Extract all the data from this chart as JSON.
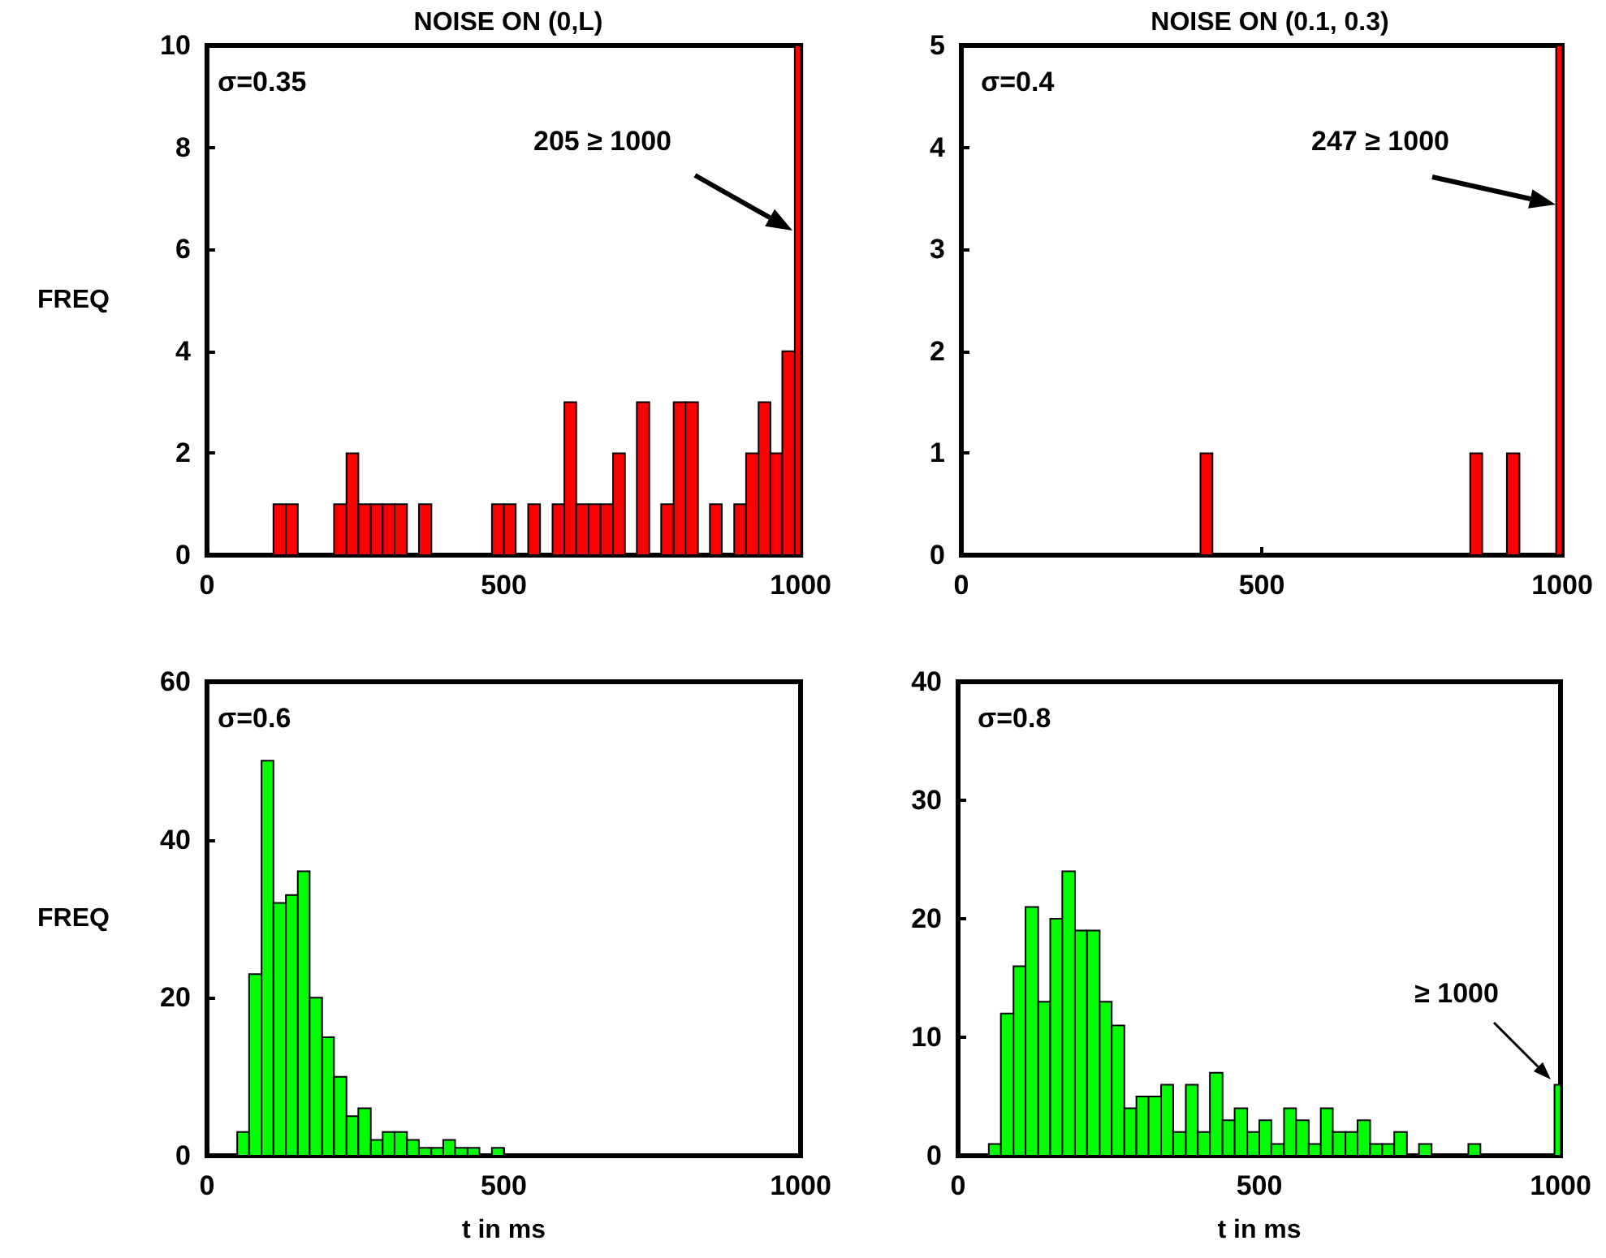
{
  "chart_data": [
    {
      "type": "histogram",
      "title": "NOISE ON (0,L)",
      "ylabel": "FREQ",
      "color": "#ff0000",
      "grid": false,
      "xlim": [
        0,
        1000
      ],
      "xticks": [
        0,
        500,
        1000
      ],
      "ylim": [
        0,
        10
      ],
      "yticks": [
        0,
        2,
        4,
        6,
        8,
        10
      ],
      "bins": [
        112,
        133,
        153,
        214,
        235,
        255,
        276,
        296,
        316,
        337,
        357,
        378,
        480,
        500,
        520,
        541,
        561,
        582,
        602,
        622,
        643,
        663,
        684,
        704,
        724,
        745,
        765,
        786,
        806,
        827,
        847,
        867,
        888,
        908,
        929,
        949,
        969,
        990,
        1000
      ],
      "values": [
        1,
        1,
        0,
        1,
        2,
        1,
        1,
        1,
        1,
        0,
        1,
        0,
        1,
        1,
        0,
        1,
        0,
        1,
        3,
        1,
        1,
        1,
        2,
        0,
        3,
        0,
        1,
        3,
        3,
        0,
        1,
        0,
        1,
        2,
        3,
        2,
        4,
        10
      ],
      "annotations": [
        "σ=0.35",
        "205 ≥ 1000"
      ]
    },
    {
      "type": "histogram",
      "title": "NOISE ON (0.1, 0.3)",
      "color": "#ff0000",
      "grid": false,
      "xlim": [
        0,
        1000
      ],
      "xticks": [
        0,
        500,
        1000
      ],
      "ylim": [
        0,
        5
      ],
      "yticks": [
        0,
        1,
        2,
        3,
        4,
        5
      ],
      "bins": [
        398,
        418,
        847,
        867,
        908,
        929,
        990,
        1000
      ],
      "values": [
        1,
        0,
        1,
        0,
        1,
        0,
        5
      ],
      "annotations": [
        "σ=0.4",
        "247 ≥ 1000"
      ]
    },
    {
      "type": "histogram",
      "ylabel": "FREQ",
      "xlabel": "t in ms",
      "color": "#00ff00",
      "grid": false,
      "xlim": [
        0,
        1000
      ],
      "xticks": [
        0,
        500,
        1000
      ],
      "ylim": [
        0,
        60
      ],
      "yticks": [
        0,
        20,
        40,
        60
      ],
      "bins": [
        51,
        71,
        92,
        112,
        133,
        153,
        173,
        194,
        214,
        235,
        255,
        276,
        296,
        316,
        337,
        357,
        378,
        398,
        418,
        439,
        459,
        480,
        500
      ],
      "values": [
        3,
        23,
        50,
        32,
        33,
        36,
        20,
        15,
        10,
        5,
        6,
        2,
        3,
        3,
        2,
        1,
        1,
        2,
        1,
        1,
        0,
        1
      ],
      "annotations": [
        "σ=0.6"
      ]
    },
    {
      "type": "histogram",
      "xlabel": "t in ms",
      "color": "#00ff00",
      "grid": false,
      "xlim": [
        0,
        1000
      ],
      "xticks": [
        0,
        500,
        1000
      ],
      "ylim": [
        0,
        40
      ],
      "yticks": [
        0,
        10,
        20,
        30,
        40
      ],
      "bins": [
        51,
        71,
        92,
        112,
        133,
        153,
        173,
        194,
        214,
        235,
        255,
        276,
        296,
        316,
        337,
        357,
        378,
        398,
        418,
        439,
        459,
        480,
        500,
        520,
        541,
        561,
        582,
        602,
        622,
        643,
        663,
        684,
        704,
        724,
        745,
        765,
        786,
        847,
        867,
        990,
        1000
      ],
      "values": [
        1,
        12,
        16,
        21,
        13,
        20,
        24,
        19,
        19,
        13,
        11,
        4,
        5,
        5,
        6,
        2,
        6,
        2,
        7,
        3,
        4,
        2,
        3,
        1,
        4,
        3,
        1,
        4,
        2,
        2,
        3,
        1,
        1,
        2,
        0,
        1,
        0,
        1,
        0,
        6
      ],
      "annotations": [
        "σ=0.8",
        "≥ 1000"
      ]
    }
  ]
}
